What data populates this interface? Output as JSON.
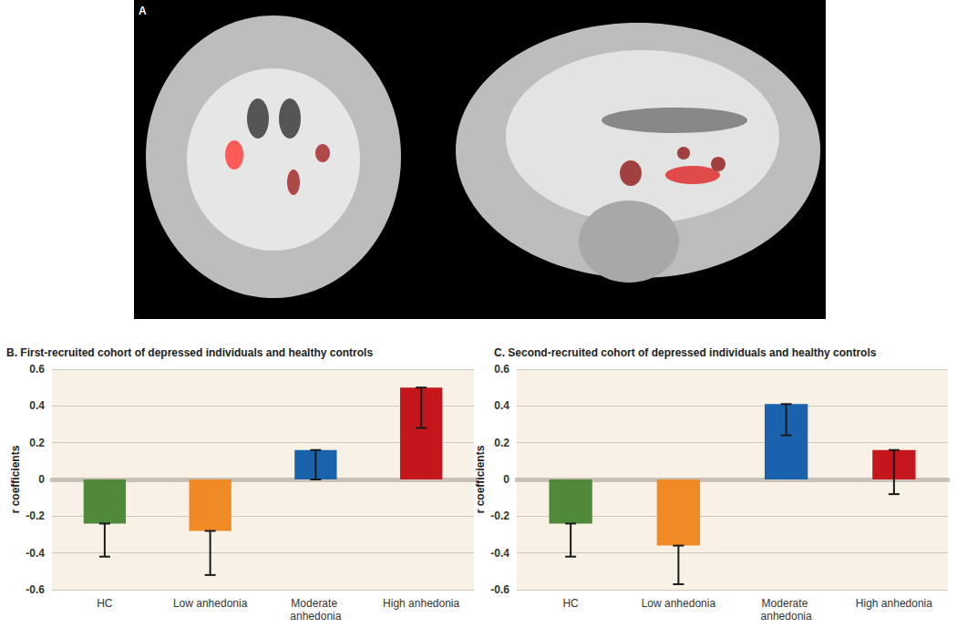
{
  "panel_a": {
    "label": "A"
  },
  "chart_data": [
    {
      "type": "bar",
      "title": "B. First-recruited cohort of depressed individuals and healthy controls",
      "ylabel": "r coefficients",
      "categories": [
        "HC",
        "Low anhedonia",
        "Moderate anhedonia",
        "High anhedonia"
      ],
      "values": [
        -0.24,
        -0.28,
        0.16,
        0.5
      ],
      "error_low": [
        -0.42,
        -0.52,
        0.0,
        0.28
      ],
      "error_high": [
        -0.24,
        -0.28,
        0.16,
        0.5
      ],
      "colors": [
        "#4e8a3a",
        "#f08a24",
        "#1b62ad",
        "#c4161c"
      ],
      "ylim": [
        -0.6,
        0.6
      ],
      "yticks": [
        -0.6,
        -0.4,
        -0.2,
        0,
        0.2,
        0.4,
        0.6
      ],
      "grid": true
    },
    {
      "type": "bar",
      "title": "C. Second-recruited cohort of depressed individuals and healthy controls",
      "ylabel": "r coefficients",
      "categories": [
        "HC",
        "Low anhedonia",
        "Moderate anhedonia",
        "High anhedonia"
      ],
      "values": [
        -0.24,
        -0.36,
        0.41,
        0.16
      ],
      "error_low": [
        -0.42,
        -0.57,
        0.24,
        -0.08
      ],
      "error_high": [
        -0.24,
        -0.36,
        0.41,
        0.16
      ],
      "colors": [
        "#4e8a3a",
        "#f08a24",
        "#1b62ad",
        "#c4161c"
      ],
      "ylim": [
        -0.6,
        0.6
      ],
      "yticks": [
        -0.6,
        -0.4,
        -0.2,
        0,
        0.2,
        0.4,
        0.6
      ],
      "grid": true
    }
  ]
}
